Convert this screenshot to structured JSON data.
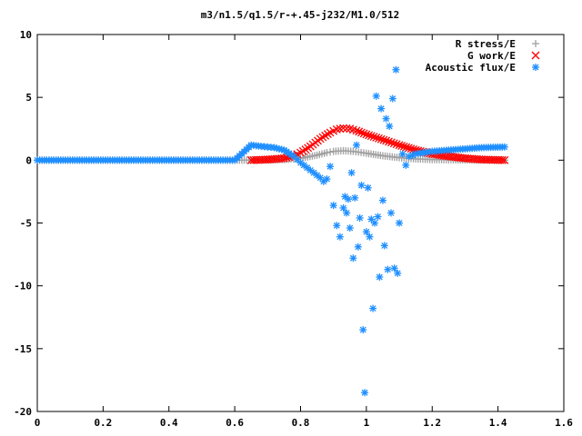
{
  "chart_data": {
    "type": "scatter",
    "title": "m3/n1.5/q1.5/r-+.45-j232/M1.0/512",
    "xlabel": "",
    "ylabel": "",
    "xlim": [
      0,
      1.6
    ],
    "ylim": [
      -20,
      10
    ],
    "xticks": [
      "0",
      "0.2",
      "0.4",
      "0.6",
      "0.8",
      "1",
      "1.2",
      "1.4",
      "1.6"
    ],
    "yticks": [
      "10",
      "5",
      "0",
      "-5",
      "-10",
      "-15",
      "-20"
    ],
    "grid": false,
    "legend_position": "top-right",
    "series": [
      {
        "name": "R stress/E",
        "marker": "+",
        "color": "#a0a0a0",
        "x": [
          0.0,
          0.1,
          0.2,
          0.3,
          0.4,
          0.5,
          0.6,
          0.65,
          0.7,
          0.75,
          0.8,
          0.85,
          0.88,
          0.9,
          0.93,
          0.96,
          1.0,
          1.05,
          1.1,
          1.15,
          1.2,
          1.3,
          1.42
        ],
        "y": [
          0.0,
          0.0,
          0.0,
          0.0,
          0.0,
          0.0,
          0.0,
          0.0,
          0.02,
          0.05,
          0.15,
          0.4,
          0.6,
          0.7,
          0.75,
          0.7,
          0.55,
          0.35,
          0.2,
          0.1,
          0.05,
          0.02,
          0.0
        ]
      },
      {
        "name": "G work/E",
        "marker": "x",
        "color": "#ff0000",
        "x": [
          0.65,
          0.7,
          0.75,
          0.78,
          0.8,
          0.83,
          0.86,
          0.89,
          0.91,
          0.93,
          0.95,
          0.97,
          1.0,
          1.03,
          1.06,
          1.1,
          1.15,
          1.2,
          1.25,
          1.3,
          1.35,
          1.42
        ],
        "y": [
          0.0,
          0.05,
          0.15,
          0.35,
          0.6,
          1.1,
          1.7,
          2.2,
          2.45,
          2.55,
          2.5,
          2.35,
          2.05,
          1.8,
          1.55,
          1.2,
          0.8,
          0.5,
          0.3,
          0.15,
          0.05,
          0.0
        ]
      },
      {
        "name": "Acoustic flux/E",
        "marker": "*",
        "color": "#1f8fff",
        "x": [
          0.0,
          0.1,
          0.2,
          0.3,
          0.4,
          0.5,
          0.6,
          0.65,
          0.68,
          0.7,
          0.72,
          0.75,
          0.78,
          0.8,
          0.82,
          0.84,
          0.86,
          0.87,
          0.88,
          0.89,
          0.9,
          0.91,
          0.92,
          0.93,
          0.935,
          0.94,
          0.945,
          0.95,
          0.955,
          0.96,
          0.965,
          0.97,
          0.975,
          0.98,
          0.985,
          0.99,
          0.995,
          1.0,
          1.005,
          1.01,
          1.015,
          1.02,
          1.025,
          1.03,
          1.035,
          1.04,
          1.045,
          1.05,
          1.055,
          1.06,
          1.065,
          1.07,
          1.075,
          1.08,
          1.085,
          1.09,
          1.095,
          1.1,
          1.11,
          1.12,
          1.13,
          1.15,
          1.2,
          1.25,
          1.3,
          1.35,
          1.42
        ],
        "y": [
          0.0,
          0.0,
          0.0,
          0.0,
          0.0,
          0.0,
          0.0,
          1.2,
          1.1,
          1.05,
          1.0,
          0.8,
          0.3,
          -0.2,
          -0.6,
          -1.0,
          -1.4,
          -1.7,
          -1.5,
          -0.5,
          -3.6,
          -5.2,
          -6.1,
          -3.8,
          -2.9,
          -4.2,
          -3.1,
          -5.4,
          -1.0,
          -7.8,
          -3.0,
          1.2,
          -6.9,
          -4.6,
          -2.0,
          -13.5,
          -18.5,
          -5.7,
          -2.2,
          -6.1,
          -4.7,
          -11.8,
          -5.0,
          5.1,
          -4.5,
          -9.3,
          4.1,
          -3.2,
          -6.8,
          3.3,
          -8.7,
          2.7,
          -4.2,
          4.9,
          -8.6,
          7.2,
          -9.0,
          -5.0,
          0.5,
          -0.4,
          0.3,
          0.5,
          0.7,
          0.8,
          0.9,
          1.0,
          1.05
        ]
      }
    ]
  }
}
